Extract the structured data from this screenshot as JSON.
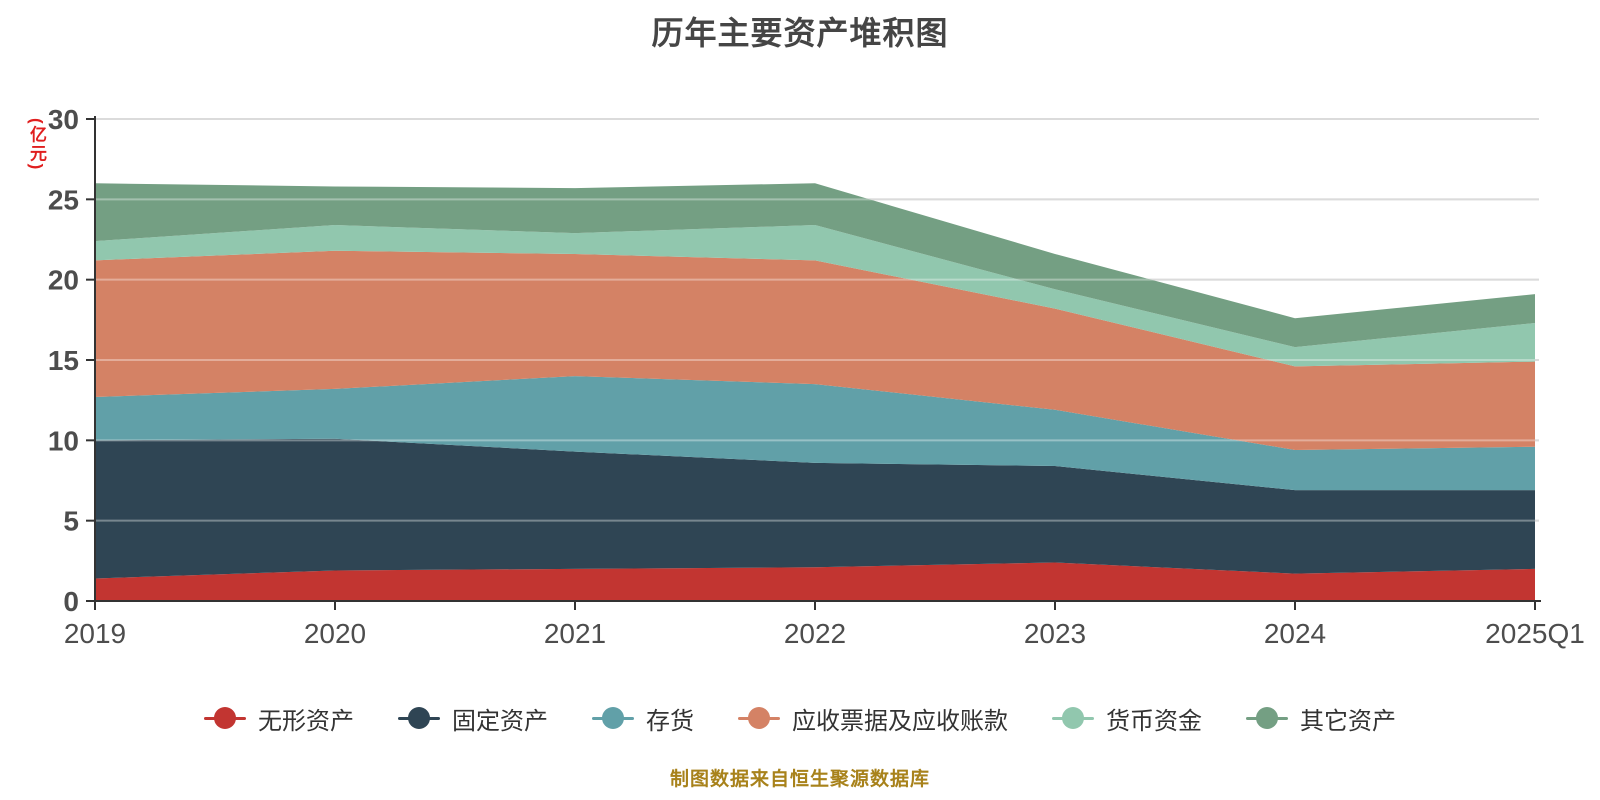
{
  "title": "历年主要资产堆积图",
  "unit_label": "(亿元)",
  "footer": "制图数据来自恒生聚源数据库",
  "colors": {
    "title_text": "#454545",
    "axis_line": "#333333",
    "axis_label": "#4d4d4d",
    "gridline": "#c8c8c8",
    "unit_label": "#e01f1f",
    "legend_text": "#333333",
    "footer_text": "#a8821b",
    "background": "#ffffff"
  },
  "chart_data": {
    "type": "area",
    "stacked": true,
    "title": "历年主要资产堆积图",
    "xlabel": "",
    "ylabel": "(亿元)",
    "ylim": [
      0,
      30
    ],
    "y_ticks": [
      0,
      5,
      10,
      15,
      20,
      25,
      30
    ],
    "grid": true,
    "legend_position": "bottom",
    "x": [
      "2019",
      "2020",
      "2021",
      "2022",
      "2023",
      "2024",
      "2025Q1"
    ],
    "series": [
      {
        "name": "无形资产",
        "color": "#c23531",
        "values": [
          1.4,
          1.9,
          2.0,
          2.1,
          2.4,
          1.7,
          2.0
        ]
      },
      {
        "name": "固定资产",
        "color": "#2f4554",
        "values": [
          8.6,
          8.2,
          7.3,
          6.5,
          6.0,
          5.2,
          4.9
        ]
      },
      {
        "name": "存货",
        "color": "#61a0a8",
        "values": [
          2.7,
          3.1,
          4.7,
          4.9,
          3.5,
          2.5,
          2.7
        ]
      },
      {
        "name": "应收票据及应收账款",
        "color": "#d48265",
        "values": [
          8.5,
          8.6,
          7.6,
          7.7,
          6.3,
          5.2,
          5.3
        ]
      },
      {
        "name": "货币资金",
        "color": "#91c7ae",
        "values": [
          1.2,
          1.6,
          1.3,
          2.2,
          1.2,
          1.2,
          2.4
        ]
      },
      {
        "name": "其它资产",
        "color": "#749f83",
        "values": [
          3.6,
          2.4,
          2.8,
          2.6,
          2.2,
          1.8,
          1.8
        ]
      }
    ]
  }
}
